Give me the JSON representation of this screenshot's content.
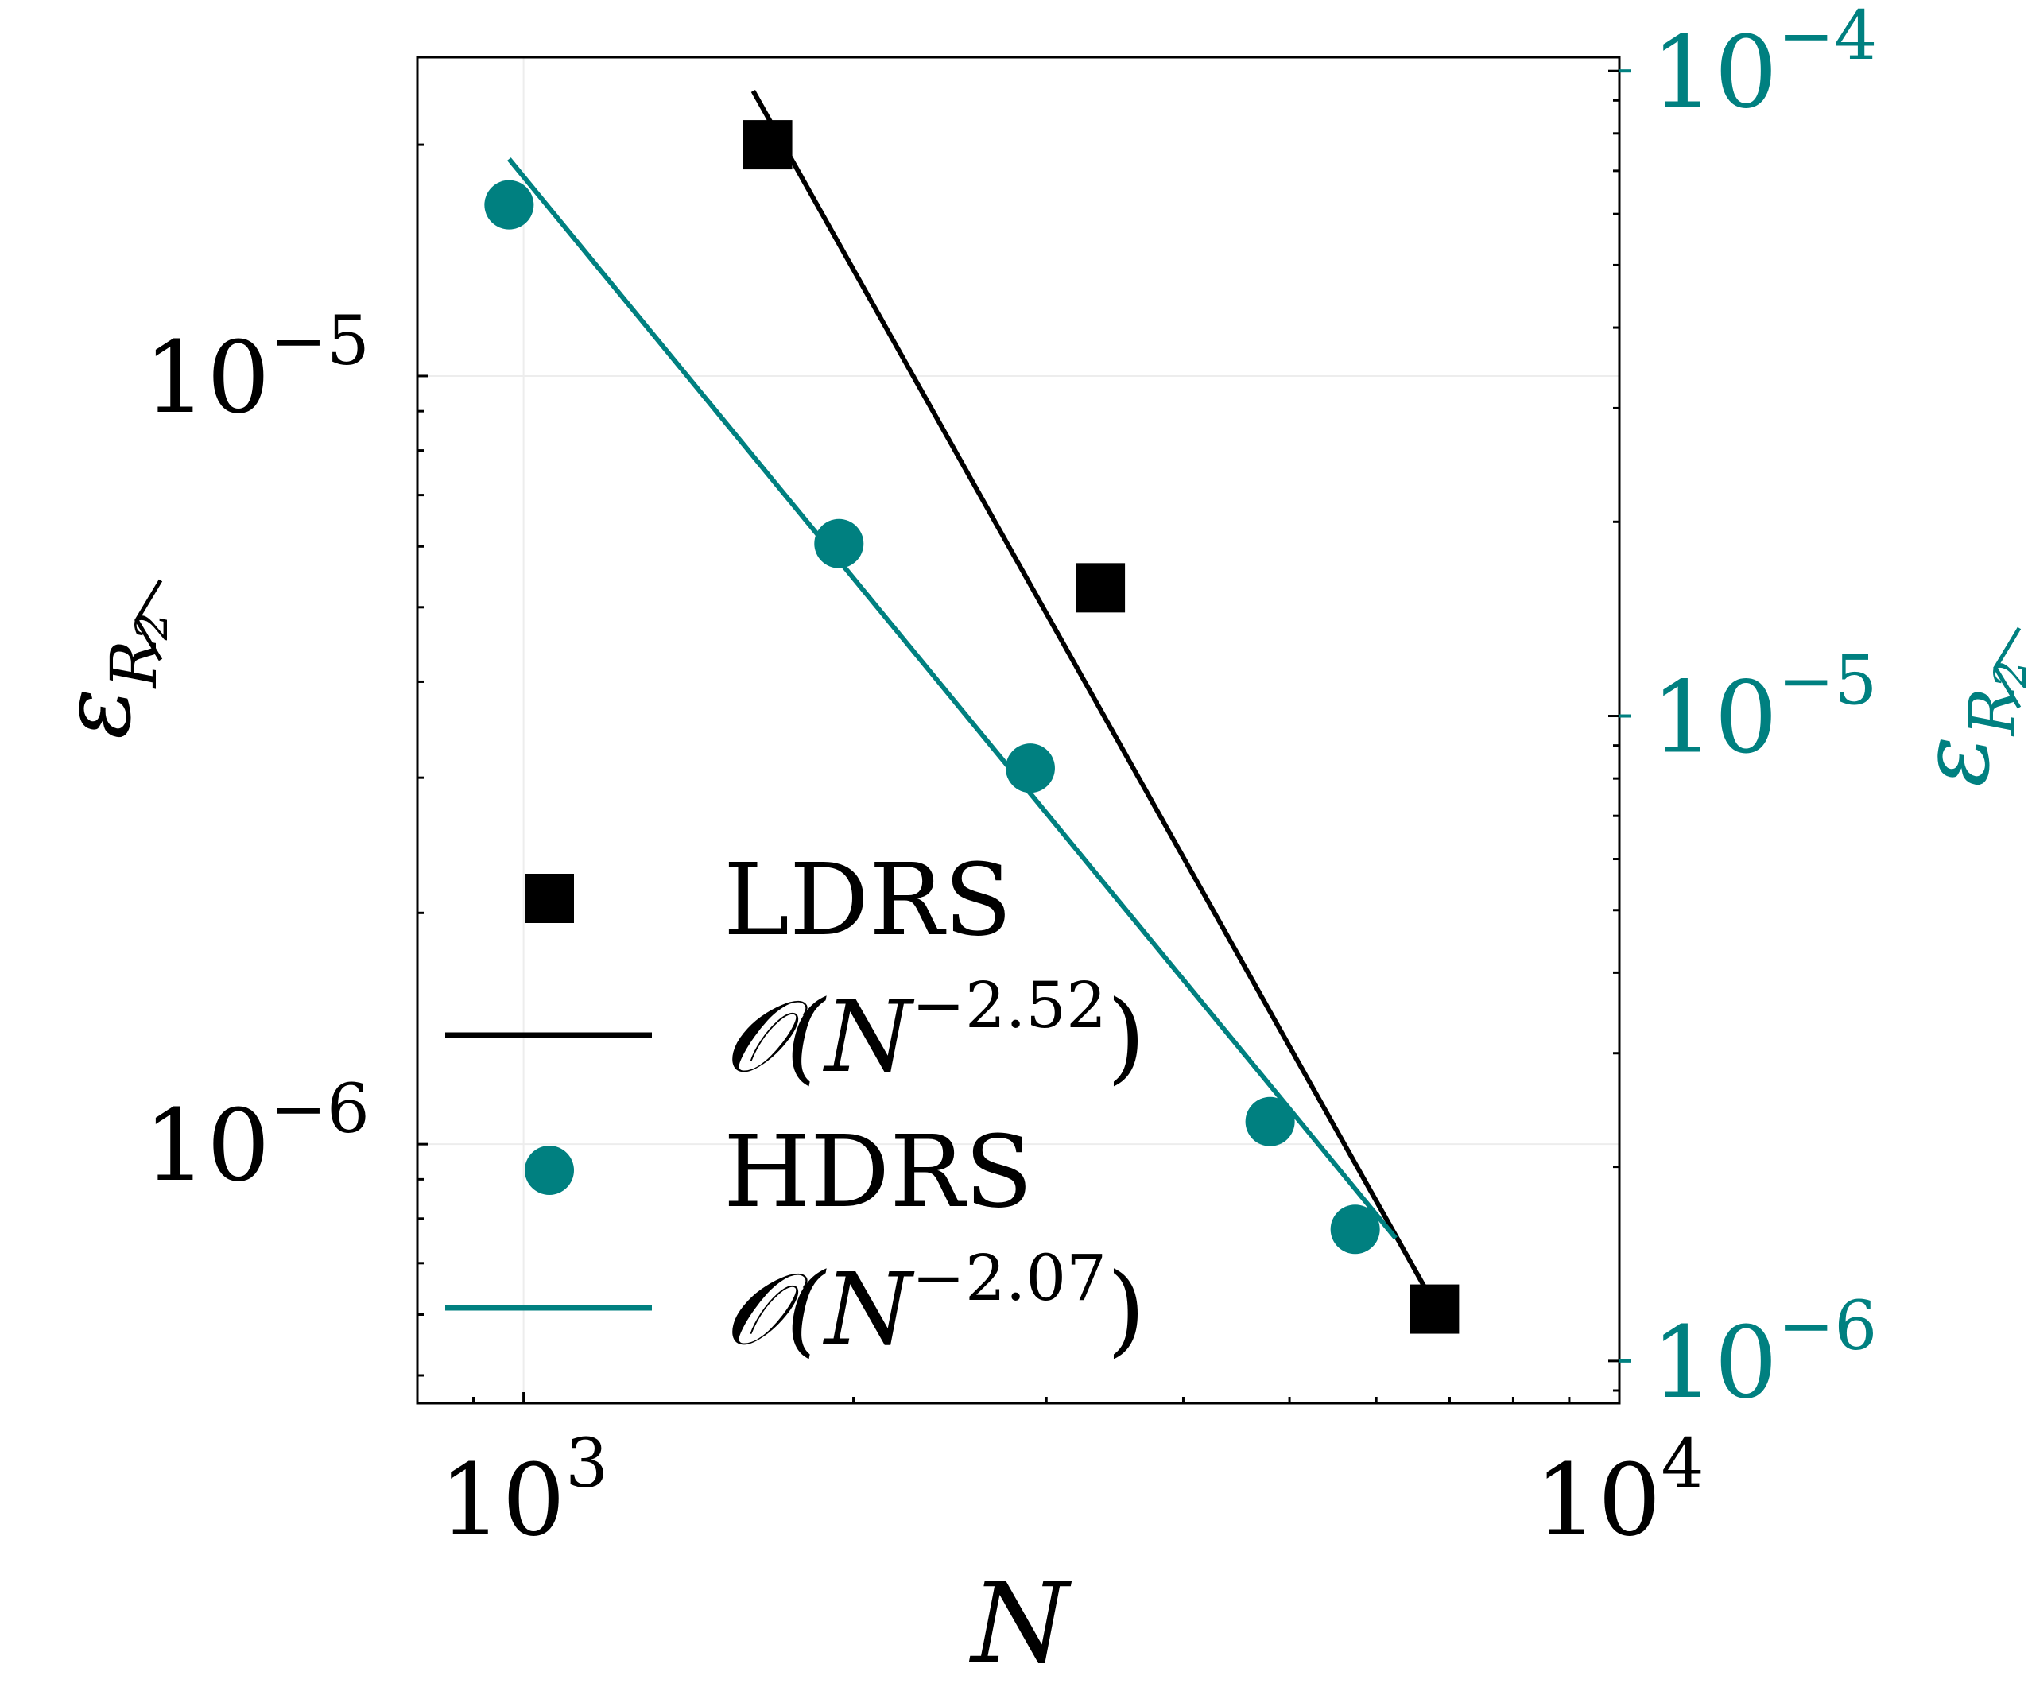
{
  "chart_data": {
    "type": "scatter",
    "xlabel": "N",
    "ylabel": "ε_R2",
    "ylabel_right": "ε_R2",
    "x_scale": "log",
    "y_scale": "log",
    "xlim": [
      800,
      10000
    ],
    "ylim_left": [
      4.6e-07,
      2.6e-05
    ],
    "ylim_right": [
      8.6e-07,
      0.000105
    ],
    "x_ticks": [
      1000,
      10000
    ],
    "x_tick_labels": [
      {
        "base": "10",
        "exp": "3"
      },
      {
        "base": "10",
        "exp": "4"
      }
    ],
    "y_ticks_left": [
      1e-05,
      1e-06
    ],
    "y_tick_labels_left": [
      {
        "base": "10",
        "exp": "−5"
      },
      {
        "base": "10",
        "exp": "−6"
      }
    ],
    "y_ticks_right": [
      0.0001,
      1e-05,
      1e-06
    ],
    "y_tick_labels_right": [
      {
        "base": "10",
        "exp": "−4"
      },
      {
        "base": "10",
        "exp": "−5"
      },
      {
        "base": "10",
        "exp": "−6"
      }
    ],
    "grid": true,
    "legend_position": "bottom-left",
    "series": [
      {
        "name": "LDRS",
        "kind": "points",
        "marker": "square",
        "axis": "left",
        "color": "#000000",
        "x": [
          1670,
          3360,
          6780
        ],
        "y": [
          2e-05,
          5.3e-06,
          6.1e-07
        ]
      },
      {
        "name": "O(N^-2.52)",
        "label_func": "𝒪(N",
        "label_exp": "−2.52",
        "label_end": ")",
        "kind": "line",
        "axis": "left",
        "color": "#000000",
        "x": [
          1620,
          7000
        ],
        "y": [
          2.35e-05,
          5.7e-07
        ]
      },
      {
        "name": "HDRS",
        "kind": "points",
        "marker": "circle",
        "axis": "right",
        "color": "#008080",
        "x": [
          970,
          1940,
          2900,
          4800,
          5740
        ],
        "y": [
          6.2e-05,
          1.85e-05,
          8.3e-06,
          2.35e-06,
          1.6e-06
        ]
      },
      {
        "name": "O(N^-2.07)",
        "label_func": "𝒪(N",
        "label_exp": "−2.07",
        "label_end": ")",
        "kind": "line",
        "axis": "right",
        "color": "#008080",
        "x": [
          970,
          6250
        ],
        "y": [
          7.3e-05,
          1.55e-06
        ]
      }
    ]
  }
}
